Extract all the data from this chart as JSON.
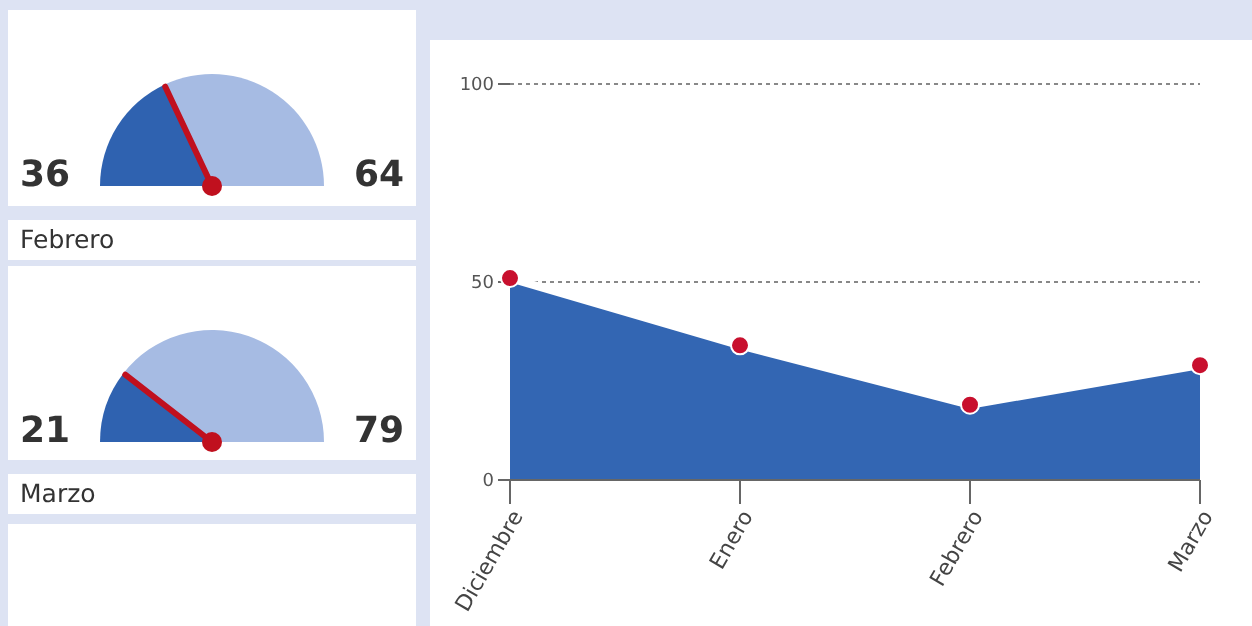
{
  "chart_data": [
    {
      "type": "pie",
      "categories": [
        null,
        null
      ],
      "values": [
        36,
        64
      ],
      "colors": [
        "#2f62b0",
        "#a6bbe3"
      ],
      "data_labels": true
    },
    {
      "type": "pie",
      "title": "Febrero",
      "categories": [
        null,
        null
      ],
      "values": [
        21,
        79
      ],
      "colors": [
        "#2f62b0",
        "#a6bbe3"
      ],
      "data_labels": true
    },
    {
      "type": "other",
      "title": "Marzo"
    },
    {
      "type": "area",
      "categories": [
        "Diciembre",
        "Enero",
        "Febrero",
        "Marzo"
      ],
      "series": [
        {
          "color": "#3366b3",
          "values": [
            51,
            34,
            19,
            29
          ]
        }
      ],
      "ylim": [
        0,
        100
      ],
      "yticks": [
        0,
        50,
        100
      ],
      "grid": "y",
      "marker": "circle"
    }
  ]
}
